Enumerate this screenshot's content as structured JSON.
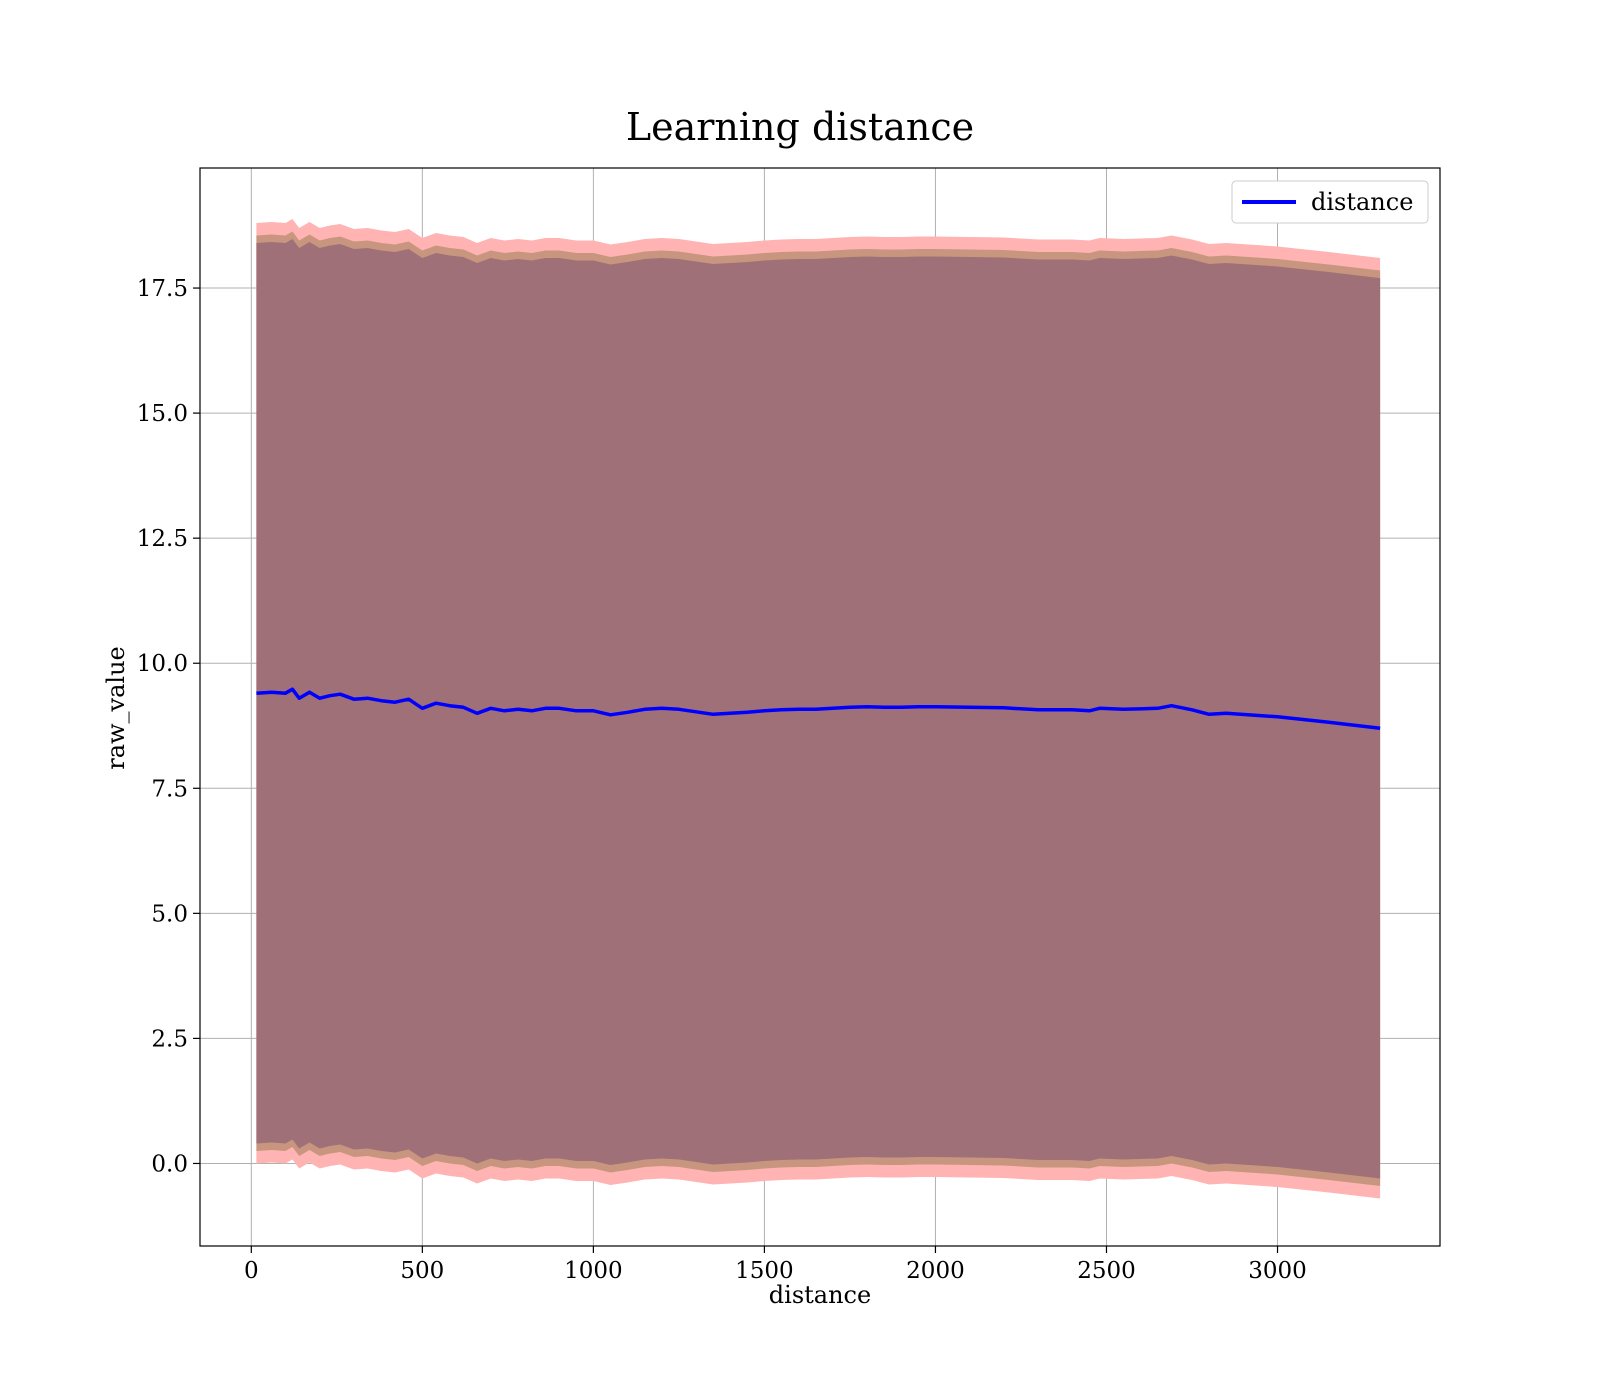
{
  "chart_data": {
    "type": "line",
    "title": "Learning distance",
    "xlabel": "distance",
    "ylabel": "raw_value",
    "xlim": [
      -150,
      3475
    ],
    "ylim": [
      -1.65,
      19.9
    ],
    "xticks": [
      0,
      500,
      1000,
      1500,
      2000,
      2500,
      3000
    ],
    "yticks": [
      0.0,
      2.5,
      5.0,
      7.5,
      10.0,
      12.5,
      15.0,
      17.5
    ],
    "xtick_labels": [
      "0",
      "500",
      "1000",
      "1500",
      "2000",
      "2500",
      "3000"
    ],
    "ytick_labels": [
      "0.0",
      "2.5",
      "5.0",
      "7.5",
      "10.0",
      "12.5",
      "15.0",
      "17.5"
    ],
    "grid": true,
    "legend": {
      "position": "top-right",
      "entries": [
        "distance"
      ]
    },
    "colors": {
      "line": "#0000ff",
      "band_outer": "#ffb3b3",
      "band_middle": "#c8967e",
      "band_inner": "#a07078",
      "grid": "#b0b0b0"
    },
    "series": [
      {
        "name": "distance",
        "x": [
          15,
          60,
          100,
          120,
          140,
          170,
          200,
          230,
          260,
          300,
          340,
          380,
          420,
          460,
          500,
          540,
          580,
          620,
          660,
          700,
          740,
          780,
          820,
          860,
          900,
          950,
          1000,
          1050,
          1100,
          1150,
          1200,
          1250,
          1300,
          1350,
          1400,
          1450,
          1500,
          1550,
          1600,
          1650,
          1700,
          1750,
          1800,
          1850,
          1900,
          1950,
          2000,
          2100,
          2200,
          2300,
          2400,
          2450,
          2480,
          2550,
          2650,
          2690,
          2750,
          2800,
          2850,
          3000,
          3150,
          3300
        ],
        "y": [
          9.4,
          9.42,
          9.4,
          9.48,
          9.3,
          9.42,
          9.3,
          9.35,
          9.38,
          9.28,
          9.3,
          9.25,
          9.22,
          9.28,
          9.1,
          9.2,
          9.15,
          9.12,
          9.0,
          9.1,
          9.05,
          9.08,
          9.05,
          9.1,
          9.1,
          9.05,
          9.05,
          8.97,
          9.02,
          9.08,
          9.1,
          9.08,
          9.03,
          8.98,
          9.0,
          9.02,
          9.05,
          9.07,
          9.08,
          9.08,
          9.1,
          9.12,
          9.13,
          9.12,
          9.12,
          9.13,
          9.13,
          9.12,
          9.11,
          9.07,
          9.07,
          9.05,
          9.1,
          9.08,
          9.1,
          9.15,
          9.07,
          8.98,
          9.0,
          8.93,
          8.82,
          8.7
        ],
        "band_outer_half_width": 9.4,
        "band_middle_half_width": 9.15,
        "band_inner_half_width": 9.0
      }
    ]
  }
}
